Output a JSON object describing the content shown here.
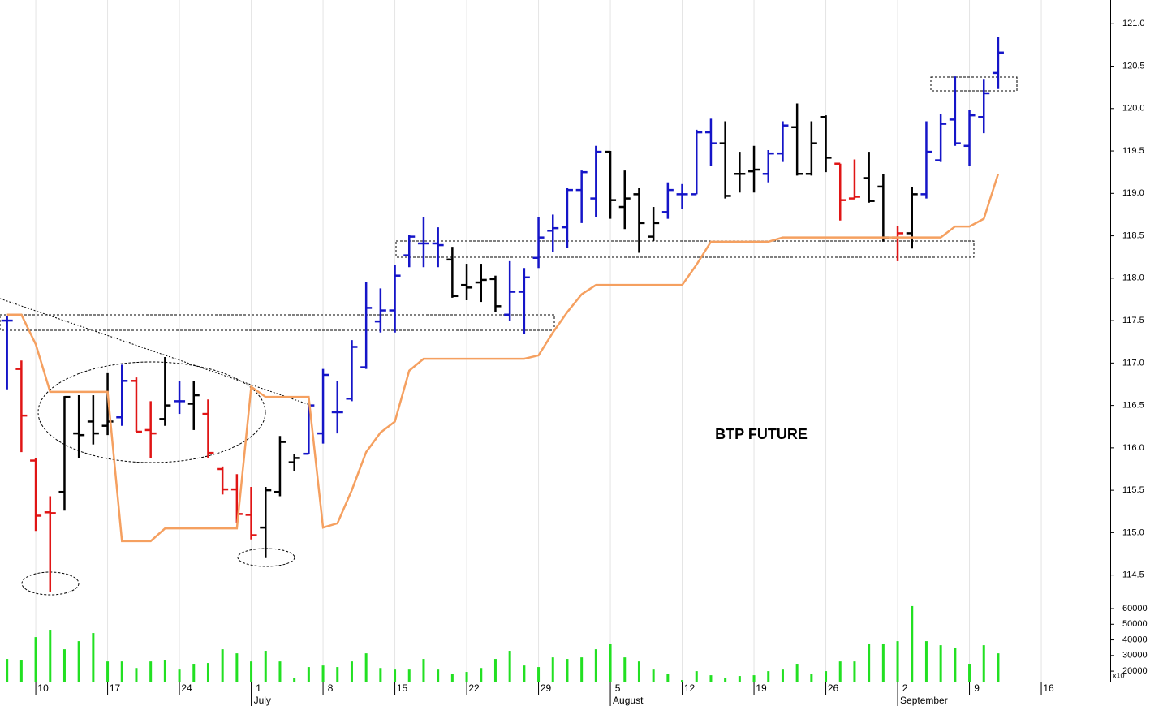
{
  "chart_data": [
    {
      "type": "ohlc",
      "annotation": "BTP FUTURE",
      "x": [
        -2,
        -1,
        0,
        1,
        2,
        3,
        4,
        5,
        6,
        7,
        8,
        9,
        10,
        11,
        12,
        13,
        14,
        15,
        16,
        17,
        18,
        19,
        20,
        21,
        22,
        23,
        24,
        25,
        26,
        27,
        28,
        29,
        30,
        31,
        32,
        33,
        34,
        35,
        36,
        37,
        38,
        39,
        40,
        41,
        42,
        43,
        44,
        45,
        46,
        47,
        48,
        49,
        50,
        51,
        52,
        53,
        54,
        55,
        56,
        57,
        58,
        59,
        60,
        61,
        62,
        63,
        64,
        65,
        66,
        67
      ],
      "open": [
        117.5,
        116.93,
        115.85,
        115.24,
        115.48,
        116.17,
        116.31,
        116.26,
        116.36,
        116.79,
        116.21,
        116.34,
        116.55,
        116.52,
        116.4,
        115.75,
        115.51,
        115.21,
        115.06,
        115.48,
        115.83,
        115.93,
        116.17,
        116.42,
        116.58,
        116.95,
        117.49,
        117.62,
        118.27,
        118.41,
        118.41,
        118.22,
        117.92,
        117.95,
        117.99,
        117.57,
        117.84,
        118.24,
        118.56,
        118.6,
        119.04,
        118.94,
        119.49,
        118.84,
        118.99,
        118.49,
        118.78,
        118.99,
        118.99,
        119.72,
        119.59,
        119.23,
        119.26,
        119.23,
        119.47,
        119.78,
        119.23,
        119.9,
        119.35,
        118.94,
        119.18,
        119.08,
        118.48,
        118.53,
        118.99,
        119.39,
        119.87,
        119.56,
        119.9,
        120.42
      ],
      "high": [
        117.55,
        117.03,
        115.88,
        115.43,
        116.61,
        116.62,
        116.62,
        116.88,
        116.98,
        116.83,
        116.55,
        117.07,
        116.79,
        116.79,
        116.57,
        115.78,
        115.69,
        115.54,
        115.54,
        116.14,
        115.93,
        116.58,
        116.93,
        116.79,
        117.27,
        117.96,
        117.88,
        118.16,
        118.51,
        118.72,
        118.6,
        118.37,
        118.17,
        118.17,
        118.03,
        118.2,
        118.12,
        118.72,
        118.75,
        119.06,
        119.27,
        119.56,
        119.5,
        119.27,
        119.06,
        118.84,
        119.13,
        119.11,
        119.75,
        119.88,
        119.85,
        119.49,
        119.56,
        119.51,
        119.85,
        120.06,
        119.85,
        119.92,
        119.35,
        119.4,
        119.49,
        119.23,
        118.62,
        119.08,
        119.85,
        119.94,
        120.38,
        119.98,
        120.35,
        120.85
      ],
      "low": [
        116.69,
        115.95,
        115.02,
        114.3,
        115.26,
        115.88,
        116.04,
        116.15,
        116.26,
        116.19,
        115.88,
        116.26,
        116.4,
        116.21,
        115.88,
        115.45,
        115.11,
        114.92,
        114.7,
        115.43,
        115.73,
        115.93,
        116.05,
        116.17,
        116.55,
        116.93,
        117.36,
        117.36,
        118.13,
        118.13,
        118.13,
        117.77,
        117.74,
        117.72,
        117.6,
        117.5,
        117.34,
        118.12,
        118.31,
        118.36,
        118.65,
        118.72,
        118.7,
        118.58,
        118.3,
        118.44,
        118.7,
        118.82,
        118.99,
        119.32,
        118.94,
        119.01,
        119.01,
        119.13,
        119.37,
        119.21,
        119.21,
        119.25,
        118.68,
        118.94,
        118.89,
        118.43,
        118.2,
        118.35,
        118.94,
        119.37,
        119.56,
        119.32,
        119.71,
        120.23
      ],
      "close": [
        117.5,
        116.38,
        115.2,
        115.23,
        116.6,
        116.15,
        116.17,
        116.31,
        116.79,
        116.19,
        116.17,
        116.5,
        116.55,
        116.62,
        115.94,
        115.51,
        115.22,
        114.97,
        115.5,
        116.07,
        115.88,
        116.5,
        116.86,
        116.42,
        117.19,
        117.65,
        117.62,
        118.03,
        118.49,
        118.41,
        118.39,
        117.79,
        117.89,
        117.98,
        117.67,
        117.84,
        118.01,
        118.48,
        118.59,
        119.04,
        119.25,
        119.49,
        118.92,
        118.94,
        118.65,
        118.65,
        119.04,
        118.99,
        119.72,
        119.59,
        118.97,
        119.23,
        119.28,
        119.47,
        119.8,
        119.23,
        119.59,
        119.42,
        118.92,
        118.96,
        118.91,
        118.48,
        118.53,
        118.99,
        119.49,
        119.82,
        119.59,
        119.92,
        120.18,
        120.66
      ],
      "colors": [
        "#1515c8",
        "#e01515",
        "#e01515",
        "#e01515",
        "#000000",
        "#000000",
        "#000000",
        "#000000",
        "#1515c8",
        "#e01515",
        "#e01515",
        "#000000",
        "#1515c8",
        "#000000",
        "#e01515",
        "#e01515",
        "#e01515",
        "#e01515",
        "#000000",
        "#000000",
        "#000000",
        "#1515c8",
        "#1515c8",
        "#1515c8",
        "#1515c8",
        "#1515c8",
        "#1515c8",
        "#1515c8",
        "#1515c8",
        "#1515c8",
        "#1515c8",
        "#000000",
        "#000000",
        "#000000",
        "#000000",
        "#1515c8",
        "#1515c8",
        "#1515c8",
        "#1515c8",
        "#1515c8",
        "#1515c8",
        "#1515c8",
        "#000000",
        "#000000",
        "#000000",
        "#000000",
        "#1515c8",
        "#1515c8",
        "#1515c8",
        "#1515c8",
        "#000000",
        "#000000",
        "#000000",
        "#1515c8",
        "#1515c8",
        "#000000",
        "#000000",
        "#000000",
        "#e01515",
        "#e01515",
        "#000000",
        "#000000",
        "#e01515",
        "#000000",
        "#1515c8",
        "#1515c8",
        "#1515c8",
        "#1515c8",
        "#1515c8",
        "#1515c8"
      ],
      "line": {
        "color": "#f5a060",
        "values": [
          117.57,
          117.57,
          117.22,
          116.66,
          116.66,
          116.66,
          116.66,
          116.66,
          114.9,
          114.9,
          114.9,
          115.05,
          115.05,
          115.05,
          115.05,
          115.05,
          115.05,
          116.72,
          116.6,
          116.6,
          116.6,
          116.6,
          115.06,
          115.11,
          115.5,
          115.95,
          116.18,
          116.31,
          116.91,
          117.05,
          117.05,
          117.05,
          117.05,
          117.05,
          117.05,
          117.05,
          117.05,
          117.09,
          117.36,
          117.6,
          117.81,
          117.92,
          117.92,
          117.92,
          117.92,
          117.92,
          117.92,
          117.92,
          118.16,
          118.43,
          118.43,
          118.43,
          118.43,
          118.43,
          118.48,
          118.48,
          118.48,
          118.48,
          118.48,
          118.48,
          118.48,
          118.48,
          118.48,
          118.48,
          118.48,
          118.48,
          118.61,
          118.61,
          118.7,
          119.23
        ]
      },
      "xlim": [
        -2.49,
        74.8
      ],
      "xticks": [
        {
          "value": 0,
          "label": "10"
        },
        {
          "value": 5,
          "label": "17"
        },
        {
          "value": 10,
          "label": "24"
        },
        {
          "value": 15,
          "label": "1"
        },
        {
          "value": 20,
          "label": "8"
        },
        {
          "value": 25,
          "label": "15"
        },
        {
          "value": 30,
          "label": "22"
        },
        {
          "value": 35,
          "label": "29"
        },
        {
          "value": 40,
          "label": "5"
        },
        {
          "value": 45,
          "label": "12"
        },
        {
          "value": 50,
          "label": "19"
        },
        {
          "value": 55,
          "label": "26"
        },
        {
          "value": 60,
          "label": "2"
        },
        {
          "value": 65,
          "label": "9"
        },
        {
          "value": 70,
          "label": "16"
        }
      ],
      "months": [
        {
          "value": 15,
          "label": "July"
        },
        {
          "value": 40,
          "label": "August"
        },
        {
          "value": 60,
          "label": "September"
        }
      ],
      "ylim": [
        114.2,
        121.28
      ],
      "yticks": [
        {
          "value": 114.5,
          "label": "114.5"
        },
        {
          "value": 115,
          "label": "115.0"
        },
        {
          "value": 115.5,
          "label": "115.5"
        },
        {
          "value": 116,
          "label": "116.0"
        },
        {
          "value": 116.5,
          "label": "116.5"
        },
        {
          "value": 117,
          "label": "117.0"
        },
        {
          "value": 117.5,
          "label": "117.5"
        },
        {
          "value": 118,
          "label": "118.0"
        },
        {
          "value": 118.5,
          "label": "118.5"
        },
        {
          "value": 119,
          "label": "119.0"
        },
        {
          "value": 119.5,
          "label": "119.5"
        },
        {
          "value": 120,
          "label": "120.0"
        },
        {
          "value": 120.5,
          "label": "120.5"
        },
        {
          "value": 121,
          "label": "121.0"
        }
      ],
      "grid": true
    },
    {
      "type": "bar",
      "color": "#22e022",
      "axis_note": "x10",
      "values": [
        27800,
        27300,
        41800,
        46500,
        34000,
        39200,
        44400,
        26200,
        26200,
        22000,
        26200,
        27300,
        21000,
        24700,
        25200,
        34000,
        31400,
        26200,
        33000,
        26200,
        15800,
        22600,
        23600,
        22600,
        26200,
        31400,
        22000,
        21000,
        21000,
        27800,
        21000,
        18400,
        19500,
        22000,
        27800,
        33000,
        23600,
        22600,
        28800,
        27800,
        28800,
        34000,
        37700,
        28800,
        26200,
        21000,
        18400,
        14300,
        20000,
        17400,
        15800,
        16900,
        17400,
        20000,
        21000,
        24700,
        18400,
        20000,
        26200,
        26200,
        37700,
        37700,
        39200,
        61600,
        39200,
        36600,
        35100,
        24700,
        36600,
        31400
      ],
      "ylim": [
        13300,
        65200
      ],
      "yticks": [
        20000,
        30000,
        40000,
        50000,
        60000
      ]
    }
  ]
}
